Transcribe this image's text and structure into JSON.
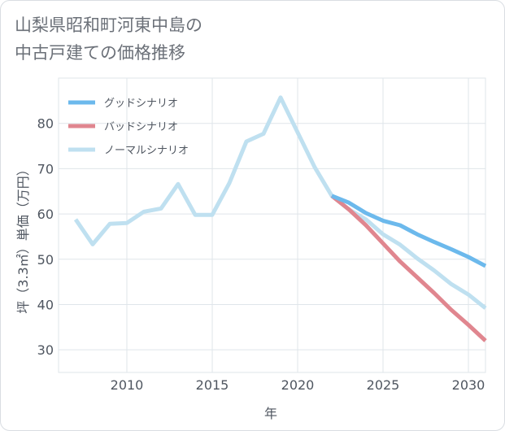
{
  "title_line1": "山梨県昭和町河東中島の",
  "title_line2": "中古戸建ての価格推移",
  "chart_data": {
    "type": "line",
    "title": "山梨県昭和町河東中島の 中古戸建ての価格推移",
    "xlabel": "年",
    "ylabel": "坪（3.3㎡）単価（万円）",
    "xlim": [
      2006,
      2031
    ],
    "ylim": [
      25,
      90
    ],
    "xticks": [
      2010,
      2015,
      2020,
      2025,
      2030
    ],
    "yticks": [
      30,
      40,
      50,
      60,
      70,
      80
    ],
    "grid": true,
    "legend_position": "top-left",
    "series": [
      {
        "name": "グッドシナリオ",
        "color": "#6cb9ec",
        "x": [
          2022,
          2023,
          2024,
          2025,
          2026,
          2027,
          2028,
          2029,
          2030,
          2031
        ],
        "values": [
          64,
          62.5,
          60.2,
          58.5,
          57.5,
          55.5,
          53.8,
          52.2,
          50.5,
          48.5
        ]
      },
      {
        "name": "バッドシナリオ",
        "color": "#e0868f",
        "x": [
          2022,
          2023,
          2024,
          2025,
          2026,
          2027,
          2028,
          2029,
          2030,
          2031
        ],
        "values": [
          64,
          61,
          57.5,
          53.5,
          49.5,
          46,
          42.5,
          38.8,
          35.5,
          32
        ]
      },
      {
        "name": "ノーマルシナリオ",
        "color": "#bfe0f0",
        "x": [
          2007,
          2008,
          2009,
          2010,
          2011,
          2012,
          2013,
          2014,
          2015,
          2016,
          2017,
          2018,
          2019,
          2020,
          2021,
          2022,
          2023,
          2024,
          2025,
          2026,
          2027,
          2028,
          2029,
          2030,
          2031
        ],
        "values": [
          58.8,
          53.3,
          57.8,
          58,
          60.5,
          61.2,
          66.6,
          59.8,
          59.8,
          66.8,
          76,
          77.7,
          85.7,
          78,
          70.3,
          64,
          61,
          58.8,
          55.5,
          53.2,
          50.2,
          47.5,
          44.5,
          42.2,
          39.2
        ]
      }
    ]
  }
}
